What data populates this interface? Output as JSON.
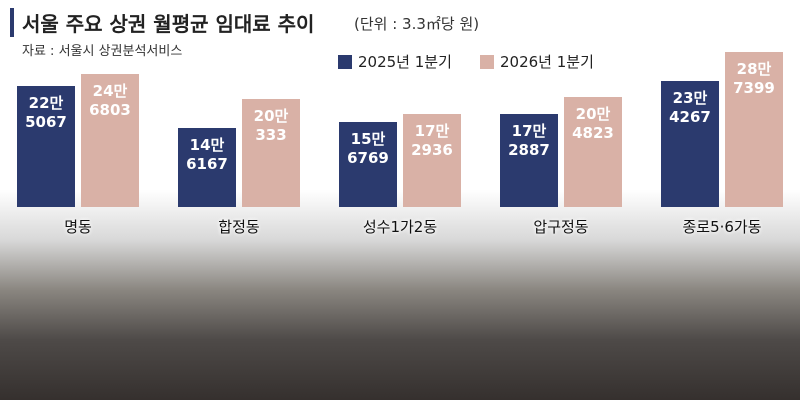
{
  "chart_data": {
    "type": "bar",
    "title": "서울 주요 상권 월평균 임대료 추이",
    "subtitle": "(단위 : 3.3㎡당 원)",
    "source": "자료 : 서울시 상권분석서비스",
    "categories": [
      "명동",
      "합정동",
      "성수1가2동",
      "압구정동",
      "종로5·6가동"
    ],
    "series": [
      {
        "name": "2025년 1분기",
        "color": "#2b3a6e",
        "values": [
          225067,
          146167,
          156769,
          172887,
          234267
        ],
        "value_labels": [
          "22만\n5067",
          "14만\n6167",
          "15만\n6769",
          "17만\n2887",
          "23만\n4267"
        ]
      },
      {
        "name": "2026년 1분기",
        "color": "#d9b1a6",
        "values": [
          246803,
          200333,
          172936,
          204823,
          287399
        ],
        "value_labels": [
          "24만\n6803",
          "20만\n333",
          "17만\n2936",
          "20만\n4823",
          "28만\n7399"
        ]
      }
    ]
  }
}
